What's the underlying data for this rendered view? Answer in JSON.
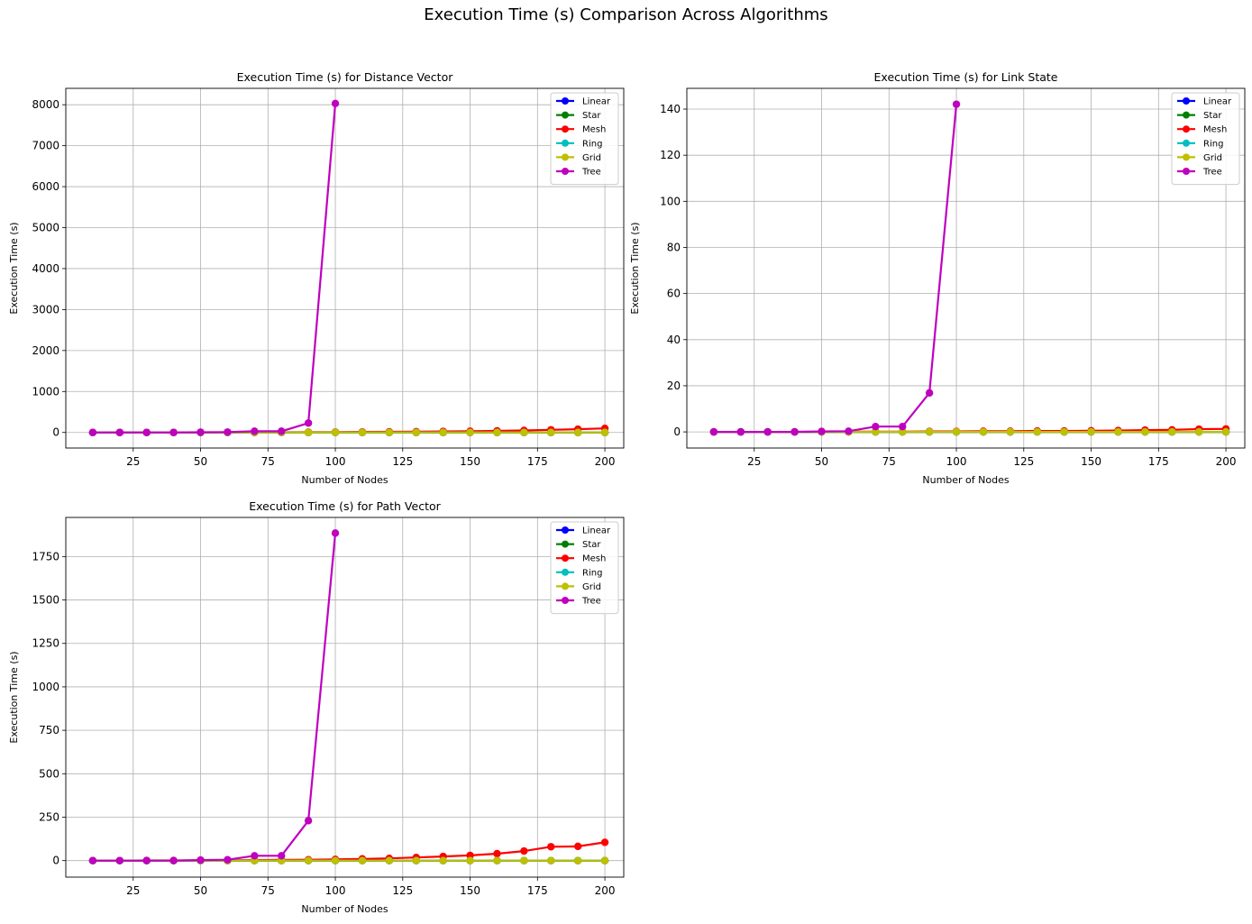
{
  "figure": {
    "title": "Execution Time (s) Comparison Across Algorithms"
  },
  "chart_data": [
    {
      "type": "line",
      "title": "Execution Time (s) for Distance Vector",
      "xlabel": "Number of Nodes",
      "ylabel": "Execution Time (s)",
      "xlim": [
        0,
        207
      ],
      "ylim": [
        -380,
        8400
      ],
      "xticks": [
        25,
        50,
        75,
        100,
        125,
        150,
        175,
        200
      ],
      "yticks": [
        0,
        1000,
        2000,
        3000,
        4000,
        5000,
        6000,
        7000,
        8000
      ],
      "grid": true,
      "legend": "top-right",
      "series": [
        {
          "name": "Linear",
          "color": "#0000ff",
          "x": [
            10,
            20,
            30,
            40,
            50,
            60,
            70,
            80,
            90,
            100,
            110,
            120,
            130,
            140,
            150,
            160,
            170,
            180,
            190,
            200
          ],
          "y": [
            0,
            0,
            0,
            0,
            0,
            0,
            0,
            0,
            0,
            0,
            0,
            0,
            0,
            0,
            0,
            0,
            0,
            0,
            0,
            0
          ]
        },
        {
          "name": "Star",
          "color": "#008000",
          "x": [
            10,
            20,
            30,
            40,
            50,
            60,
            70,
            80,
            90,
            100,
            110,
            120,
            130,
            140,
            150,
            160,
            170,
            180,
            190,
            200
          ],
          "y": [
            0,
            0,
            0,
            0,
            0,
            0,
            0,
            0,
            0,
            0,
            0,
            0,
            0,
            0,
            0,
            0,
            0,
            0,
            0,
            0
          ]
        },
        {
          "name": "Mesh",
          "color": "#ff0000",
          "x": [
            10,
            20,
            30,
            40,
            50,
            60,
            70,
            80,
            90,
            100,
            110,
            120,
            130,
            140,
            150,
            160,
            170,
            180,
            190,
            200
          ],
          "y": [
            0,
            1,
            1,
            2,
            3,
            4,
            5,
            6,
            8,
            10,
            13,
            17,
            20,
            25,
            30,
            38,
            50,
            65,
            80,
            100
          ]
        },
        {
          "name": "Ring",
          "color": "#00bfbf",
          "x": [
            10,
            20,
            30,
            40,
            50,
            60,
            70,
            80,
            90,
            100,
            110,
            120,
            130,
            140,
            150,
            160,
            170,
            180,
            190,
            200
          ],
          "y": [
            0,
            0,
            0,
            0,
            0,
            0,
            0,
            0,
            0,
            0,
            0,
            0,
            0,
            0,
            0,
            0,
            0,
            0,
            0,
            0
          ]
        },
        {
          "name": "Grid",
          "color": "#bfbf00",
          "x": [
            10,
            20,
            30,
            40,
            50,
            60,
            70,
            80,
            90,
            100,
            110,
            120,
            130,
            140,
            150,
            160,
            170,
            180,
            190,
            200
          ],
          "y": [
            0,
            0,
            0,
            0,
            0,
            0,
            0,
            0,
            0,
            0,
            0,
            0,
            0,
            0,
            0,
            0,
            0,
            0,
            0,
            0
          ]
        },
        {
          "name": "Tree",
          "color": "#bf00bf",
          "x": [
            10,
            20,
            30,
            40,
            50,
            60,
            70,
            80,
            90,
            100
          ],
          "y": [
            0,
            0,
            0,
            0,
            5,
            10,
            30,
            30,
            230,
            8030
          ]
        }
      ]
    },
    {
      "type": "line",
      "title": "Execution Time (s) for Link State",
      "xlabel": "Number of Nodes",
      "ylabel": "Execution Time (s)",
      "xlim": [
        0,
        207
      ],
      "ylim": [
        -7,
        149
      ],
      "xticks": [
        25,
        50,
        75,
        100,
        125,
        150,
        175,
        200
      ],
      "yticks": [
        0,
        20,
        40,
        60,
        80,
        100,
        120,
        140
      ],
      "grid": true,
      "legend": "top-right",
      "series": [
        {
          "name": "Linear",
          "color": "#0000ff",
          "x": [
            10,
            20,
            30,
            40,
            50,
            60,
            70,
            80,
            90,
            100,
            110,
            120,
            130,
            140,
            150,
            160,
            170,
            180,
            190,
            200
          ],
          "y": [
            0,
            0,
            0,
            0,
            0,
            0,
            0,
            0,
            0,
            0,
            0,
            0,
            0,
            0,
            0,
            0,
            0,
            0,
            0,
            0
          ]
        },
        {
          "name": "Star",
          "color": "#008000",
          "x": [
            10,
            20,
            30,
            40,
            50,
            60,
            70,
            80,
            90,
            100,
            110,
            120,
            130,
            140,
            150,
            160,
            170,
            180,
            190,
            200
          ],
          "y": [
            0,
            0,
            0,
            0,
            0,
            0,
            0,
            0,
            0,
            0,
            0,
            0,
            0,
            0,
            0,
            0,
            0,
            0,
            0,
            0
          ]
        },
        {
          "name": "Mesh",
          "color": "#ff0000",
          "x": [
            10,
            20,
            30,
            40,
            50,
            60,
            70,
            80,
            90,
            100,
            110,
            120,
            130,
            140,
            150,
            160,
            170,
            180,
            190,
            200
          ],
          "y": [
            0,
            0,
            0,
            0,
            0.1,
            0.1,
            0.1,
            0.1,
            0.2,
            0.2,
            0.3,
            0.3,
            0.4,
            0.4,
            0.5,
            0.6,
            0.8,
            0.9,
            1.2,
            1.3
          ]
        },
        {
          "name": "Ring",
          "color": "#00bfbf",
          "x": [
            10,
            20,
            30,
            40,
            50,
            60,
            70,
            80,
            90,
            100,
            110,
            120,
            130,
            140,
            150,
            160,
            170,
            180,
            190,
            200
          ],
          "y": [
            0,
            0,
            0,
            0,
            0,
            0,
            0,
            0,
            0,
            0,
            0,
            0,
            0,
            0,
            0,
            0,
            0,
            0,
            0,
            0
          ]
        },
        {
          "name": "Grid",
          "color": "#bfbf00",
          "x": [
            10,
            20,
            30,
            40,
            50,
            60,
            70,
            80,
            90,
            100,
            110,
            120,
            130,
            140,
            150,
            160,
            170,
            180,
            190,
            200
          ],
          "y": [
            0,
            0,
            0,
            0,
            0,
            0,
            0,
            0,
            0,
            0,
            0,
            0,
            0,
            0,
            0,
            0,
            0,
            0,
            0,
            0
          ]
        },
        {
          "name": "Tree",
          "color": "#bf00bf",
          "x": [
            10,
            20,
            30,
            40,
            50,
            60,
            70,
            80,
            90,
            100
          ],
          "y": [
            0,
            0,
            0,
            0,
            0.2,
            0.3,
            2.3,
            2.3,
            16.9,
            142.1
          ]
        }
      ]
    },
    {
      "type": "line",
      "title": "Execution Time (s) for Path Vector",
      "xlabel": "Number of Nodes",
      "ylabel": "Execution Time (s)",
      "xlim": [
        0,
        207
      ],
      "ylim": [
        -95,
        1975
      ],
      "xticks": [
        25,
        50,
        75,
        100,
        125,
        150,
        175,
        200
      ],
      "yticks": [
        0,
        250,
        500,
        750,
        1000,
        1250,
        1500,
        1750
      ],
      "grid": true,
      "legend": "top-right",
      "series": [
        {
          "name": "Linear",
          "color": "#0000ff",
          "x": [
            10,
            20,
            30,
            40,
            50,
            60,
            70,
            80,
            90,
            100,
            110,
            120,
            130,
            140,
            150,
            160,
            170,
            180,
            190,
            200
          ],
          "y": [
            0,
            0,
            0,
            0,
            0,
            0,
            0,
            0,
            0,
            0,
            0,
            0,
            0,
            0,
            0,
            0,
            0,
            0,
            0,
            0
          ]
        },
        {
          "name": "Star",
          "color": "#008000",
          "x": [
            10,
            20,
            30,
            40,
            50,
            60,
            70,
            80,
            90,
            100,
            110,
            120,
            130,
            140,
            150,
            160,
            170,
            180,
            190,
            200
          ],
          "y": [
            0,
            0,
            0,
            0,
            0,
            0,
            0,
            0,
            0,
            0,
            0,
            0,
            0,
            0,
            0,
            0,
            0,
            0,
            0,
            0
          ]
        },
        {
          "name": "Mesh",
          "color": "#ff0000",
          "x": [
            10,
            20,
            30,
            40,
            50,
            60,
            70,
            80,
            90,
            100,
            110,
            120,
            130,
            140,
            150,
            160,
            170,
            180,
            190,
            200
          ],
          "y": [
            0,
            0,
            1,
            1,
            2,
            2,
            3,
            4,
            5,
            7,
            10,
            13,
            18,
            24,
            30,
            40,
            55,
            80,
            82,
            105
          ]
        },
        {
          "name": "Ring",
          "color": "#00bfbf",
          "x": [
            10,
            20,
            30,
            40,
            50,
            60,
            70,
            80,
            90,
            100,
            110,
            120,
            130,
            140,
            150,
            160,
            170,
            180,
            190,
            200
          ],
          "y": [
            0,
            0,
            0,
            0,
            0,
            0,
            0,
            0,
            0,
            0,
            0,
            0,
            0,
            0,
            0,
            0,
            0,
            0,
            0,
            0
          ]
        },
        {
          "name": "Grid",
          "color": "#bfbf00",
          "x": [
            10,
            20,
            30,
            40,
            50,
            60,
            70,
            80,
            90,
            100,
            110,
            120,
            130,
            140,
            150,
            160,
            170,
            180,
            190,
            200
          ],
          "y": [
            0,
            0,
            0,
            0,
            0,
            0,
            0,
            0,
            0,
            0,
            0,
            0,
            0,
            0,
            0,
            0,
            0,
            0,
            0,
            0
          ]
        },
        {
          "name": "Tree",
          "color": "#bf00bf",
          "x": [
            10,
            20,
            30,
            40,
            50,
            60,
            70,
            80,
            90,
            100
          ],
          "y": [
            0,
            0,
            0,
            0,
            3,
            5,
            28,
            28,
            230,
            1885
          ]
        }
      ]
    }
  ]
}
